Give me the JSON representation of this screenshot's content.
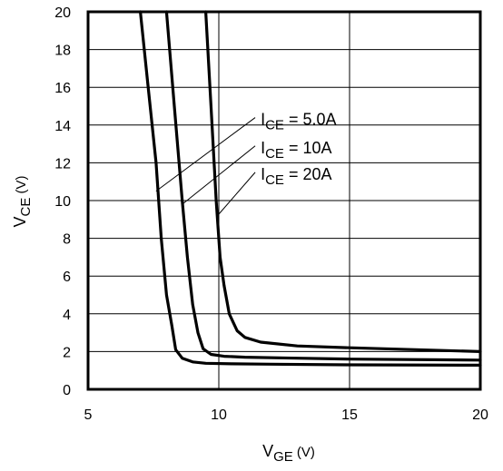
{
  "chart_data": {
    "type": "line",
    "title": "",
    "xlabel": {
      "main": "V",
      "sub": "GE",
      "unit": " (V)"
    },
    "ylabel": {
      "main": "V",
      "sub": "CE",
      "unit": " (V)"
    },
    "xlim": [
      5,
      20
    ],
    "ylim": [
      0,
      20
    ],
    "xticks": [
      "5",
      "10",
      "15",
      "20"
    ],
    "yticks": [
      "0",
      "2",
      "4",
      "6",
      "8",
      "10",
      "12",
      "14",
      "16",
      "18",
      "20"
    ],
    "grid": true,
    "series": [
      {
        "name": "I_CE = 5.0A",
        "label": {
          "main": "I",
          "sub": "CE",
          "rest": " = 5.0A"
        },
        "x": [
          7.0,
          7.3,
          7.6,
          7.8,
          8.0,
          8.2,
          8.35,
          8.6,
          9.0,
          9.5,
          10.5,
          12,
          15,
          20
        ],
        "y": [
          20.0,
          16.0,
          12.0,
          8.0,
          5.0,
          3.4,
          2.1,
          1.65,
          1.45,
          1.38,
          1.35,
          1.33,
          1.3,
          1.28
        ]
      },
      {
        "name": "I_CE = 10A",
        "label": {
          "main": "I",
          "sub": "CE",
          "rest": " = 10A"
        },
        "x": [
          8.0,
          8.3,
          8.6,
          8.8,
          9.0,
          9.2,
          9.4,
          9.7,
          10.2,
          11,
          13,
          15,
          20
        ],
        "y": [
          20.0,
          15.0,
          10.0,
          7.0,
          4.5,
          3.0,
          2.15,
          1.85,
          1.75,
          1.7,
          1.65,
          1.6,
          1.55
        ]
      },
      {
        "name": "I_CE = 20A",
        "label": {
          "main": "I",
          "sub": "CE",
          "rest": " = 20A"
        },
        "x": [
          9.5,
          9.7,
          9.9,
          10.05,
          10.2,
          10.4,
          10.7,
          11,
          11.6,
          13,
          15,
          20
        ],
        "y": [
          20.0,
          15.0,
          10.0,
          7.0,
          5.5,
          4.0,
          3.1,
          2.75,
          2.5,
          2.3,
          2.2,
          2.0
        ]
      }
    ],
    "annotations": [
      {
        "series": 0,
        "point": [
          7.6,
          10.5
        ],
        "text_at": [
          11.6,
          14.3
        ]
      },
      {
        "series": 1,
        "point": [
          8.6,
          9.8
        ],
        "text_at": [
          11.6,
          12.8
        ]
      },
      {
        "series": 2,
        "point": [
          9.95,
          9.2
        ],
        "text_at": [
          11.6,
          11.4
        ]
      }
    ]
  }
}
